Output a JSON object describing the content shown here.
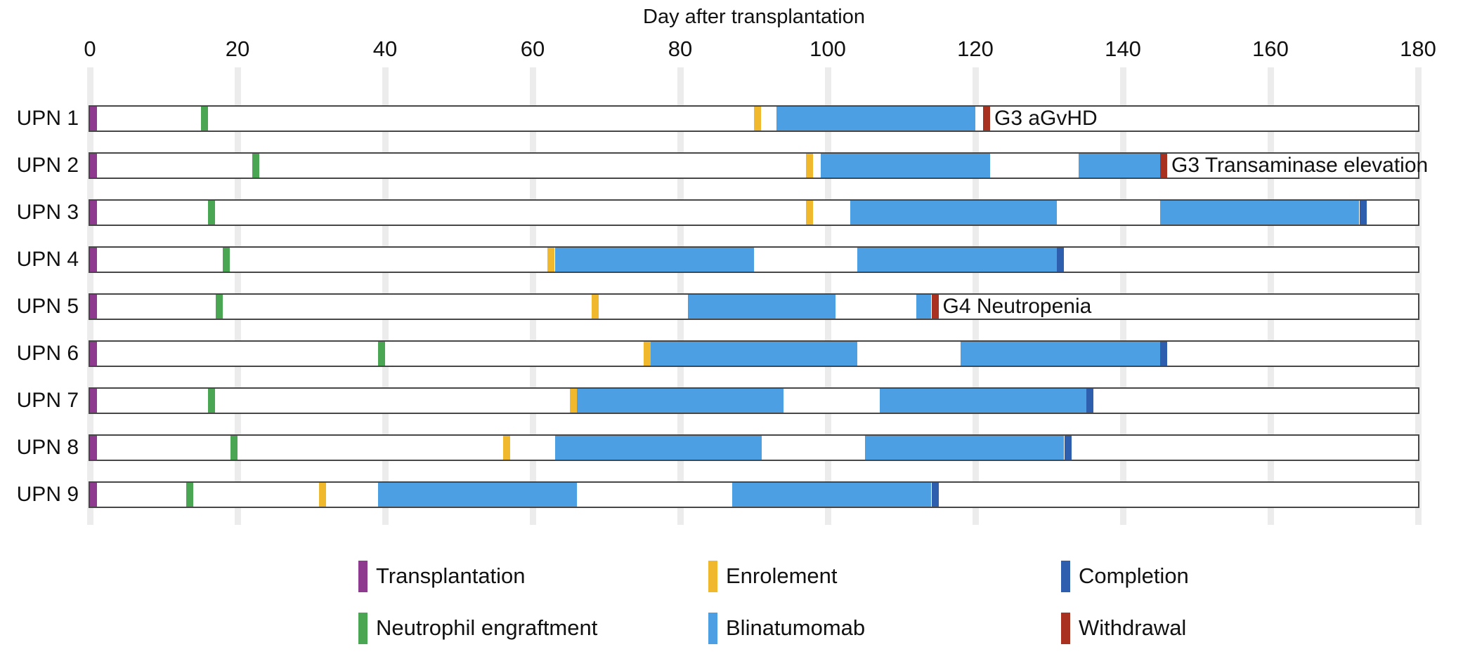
{
  "chart_data": {
    "type": "timeline-swimmer",
    "title": "Day after transplantation",
    "xlabel": "Day after transplantation",
    "xlim": [
      0,
      180
    ],
    "x_ticks": [
      0,
      20,
      40,
      60,
      80,
      100,
      120,
      140,
      160,
      180
    ],
    "grid": "vertical-light",
    "colors": {
      "transplantation": "#8E3A8F",
      "neutrophil_engraftment": "#4BA653",
      "enrolement": "#EFB82D",
      "blinatumomab": "#4D9FE3",
      "completion": "#2E5FAF",
      "withdrawal": "#A93120"
    },
    "patients": [
      {
        "label": "UPN 1",
        "transplantation": 0,
        "neutrophil_engraftment": 15,
        "enrolement": 90,
        "blinatumomab": [
          [
            93,
            120
          ]
        ],
        "completion": null,
        "withdrawal": 122,
        "annotation": "G3 aGvHD"
      },
      {
        "label": "UPN 2",
        "transplantation": 0,
        "neutrophil_engraftment": 22,
        "enrolement": 97,
        "blinatumomab": [
          [
            99,
            122
          ],
          [
            134,
            145
          ]
        ],
        "completion": null,
        "withdrawal": 146,
        "annotation": "G3 Transaminase elevation"
      },
      {
        "label": "UPN 3",
        "transplantation": 0,
        "neutrophil_engraftment": 16,
        "enrolement": 97,
        "blinatumomab": [
          [
            103,
            131
          ],
          [
            145,
            172
          ]
        ],
        "completion": 173,
        "withdrawal": null,
        "annotation": null
      },
      {
        "label": "UPN 4",
        "transplantation": 0,
        "neutrophil_engraftment": 18,
        "enrolement": 62,
        "blinatumomab": [
          [
            63,
            90
          ],
          [
            104,
            131
          ]
        ],
        "completion": 132,
        "withdrawal": null,
        "annotation": null
      },
      {
        "label": "UPN 5",
        "transplantation": 0,
        "neutrophil_engraftment": 17,
        "enrolement": 68,
        "blinatumomab": [
          [
            81,
            101
          ],
          [
            112,
            114
          ]
        ],
        "completion": null,
        "withdrawal": 115,
        "annotation": "G4 Neutropenia"
      },
      {
        "label": "UPN 6",
        "transplantation": 0,
        "neutrophil_engraftment": 39,
        "enrolement": 75,
        "blinatumomab": [
          [
            76,
            104
          ],
          [
            118,
            145
          ]
        ],
        "completion": 146,
        "withdrawal": null,
        "annotation": null
      },
      {
        "label": "UPN 7",
        "transplantation": 0,
        "neutrophil_engraftment": 16,
        "enrolement": 65,
        "blinatumomab": [
          [
            66,
            94
          ],
          [
            107,
            135
          ]
        ],
        "completion": 136,
        "withdrawal": null,
        "annotation": null
      },
      {
        "label": "UPN 8",
        "transplantation": 0,
        "neutrophil_engraftment": 19,
        "enrolement": 56,
        "blinatumomab": [
          [
            63,
            91
          ],
          [
            105,
            132
          ]
        ],
        "completion": 133,
        "withdrawal": null,
        "annotation": null
      },
      {
        "label": "UPN 9",
        "transplantation": 0,
        "neutrophil_engraftment": 13,
        "enrolement": 31,
        "blinatumomab": [
          [
            39,
            66
          ],
          [
            87,
            114
          ]
        ],
        "completion": 115,
        "withdrawal": null,
        "annotation": null
      }
    ],
    "legend": [
      {
        "label": "Transplantation",
        "color_key": "transplantation"
      },
      {
        "label": "Enrolement",
        "color_key": "enrolement"
      },
      {
        "label": "Completion",
        "color_key": "completion"
      },
      {
        "label": "Neutrophil engraftment",
        "color_key": "neutrophil_engraftment"
      },
      {
        "label": "Blinatumomab",
        "color_key": "blinatumomab"
      },
      {
        "label": "Withdrawal",
        "color_key": "withdrawal"
      }
    ],
    "legend_position": "bottom"
  }
}
